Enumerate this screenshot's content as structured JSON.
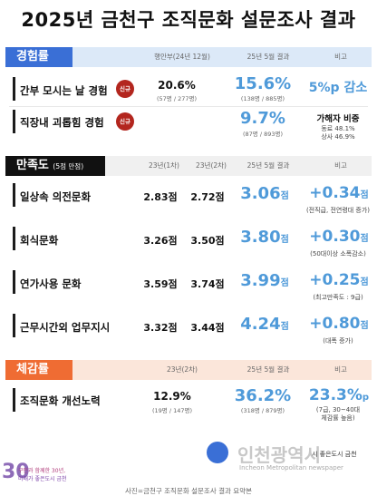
{
  "title": "2025년 금천구 조직문화 설문조사 결과",
  "sections": {
    "experience": {
      "label": "경험률",
      "col_prev": "행안부(24년 12월)",
      "col_cur": "25년 5월 결과",
      "col_note": "비고",
      "rows": [
        {
          "label": "간부 모시는 날 경험",
          "badge": "신규",
          "prev_value": "20.6%",
          "prev_sub": "(57명 / 277명)",
          "cur_value": "15.6%",
          "cur_sub": "(138명 / 885명)",
          "note_main": "5%p 감소",
          "note_sub": ""
        },
        {
          "label": "직장내 괴롭힘 경험",
          "badge": "신규",
          "prev_value": "",
          "prev_sub": "",
          "cur_value": "9.7%",
          "cur_sub": "(87명 / 893명)",
          "note_main": "가해자 비중",
          "note_sub": "동료 48.1%",
          "note_sub2": "상사 46.9%"
        }
      ]
    },
    "satisfaction": {
      "label": "만족도",
      "label_small": "(5점 만점)",
      "col_y1": "23년(1차)",
      "col_y2": "23년(2차)",
      "col_cur": "25년 5월 결과",
      "col_note": "비고",
      "rows": [
        {
          "label": "일상속 의전문화",
          "y1": "2.83점",
          "y2": "2.72점",
          "cur": "3.06",
          "unit": "점",
          "delta": "+0.34",
          "delta_unit": "점",
          "note": "(전직급, 전연령대 증가)"
        },
        {
          "label": "회식문화",
          "y1": "3.26점",
          "y2": "3.50점",
          "cur": "3.80",
          "unit": "점",
          "delta": "+0.30",
          "delta_unit": "점",
          "note": "(50대이상 소폭감소)"
        },
        {
          "label": "연가사용 문화",
          "y1": "3.59점",
          "y2": "3.74점",
          "cur": "3.99",
          "unit": "점",
          "delta": "+0.25",
          "delta_unit": "점",
          "note": "(최고만족도 : 9급)"
        },
        {
          "label": "근무시간외 업무지시",
          "y1": "3.32점",
          "y2": "3.44점",
          "cur": "4.24",
          "unit": "점",
          "delta": "+0.80",
          "delta_unit": "점",
          "note": "(대폭 증가)"
        }
      ]
    },
    "perception": {
      "label": "체감률",
      "col_prev": "23년(2차)",
      "col_cur": "25년 5월 결과",
      "col_note": "비고",
      "rows": [
        {
          "label": "조직문화 개선노력",
          "prev_value": "12.9%",
          "prev_sub": "(19명 / 147명)",
          "cur_value": "36.2%",
          "cur_sub": "(318명 / 879명)",
          "delta": "23.3%",
          "delta_unit": "p",
          "note1": "(7급, 30~40대",
          "note2": "체감률 높음)"
        }
      ]
    }
  },
  "footer": {
    "logo_line1": "구민과 함께한 30년,",
    "logo_line2": "미래가 좋은도시 금천",
    "logo_number": "30",
    "right_logo": "시 좋은도시 금천",
    "watermark_main": "인천광역시",
    "watermark_sub": "Incheon Metropolitan newspaper",
    "caption": "사진=금천구 조직문화 설문조사 결과 요약본"
  },
  "colors": {
    "experience": "#3a6fd6",
    "satisfaction": "#111111",
    "perception": "#ef6c33",
    "highlight": "#4f9ad9",
    "badge": "#b3261e"
  }
}
